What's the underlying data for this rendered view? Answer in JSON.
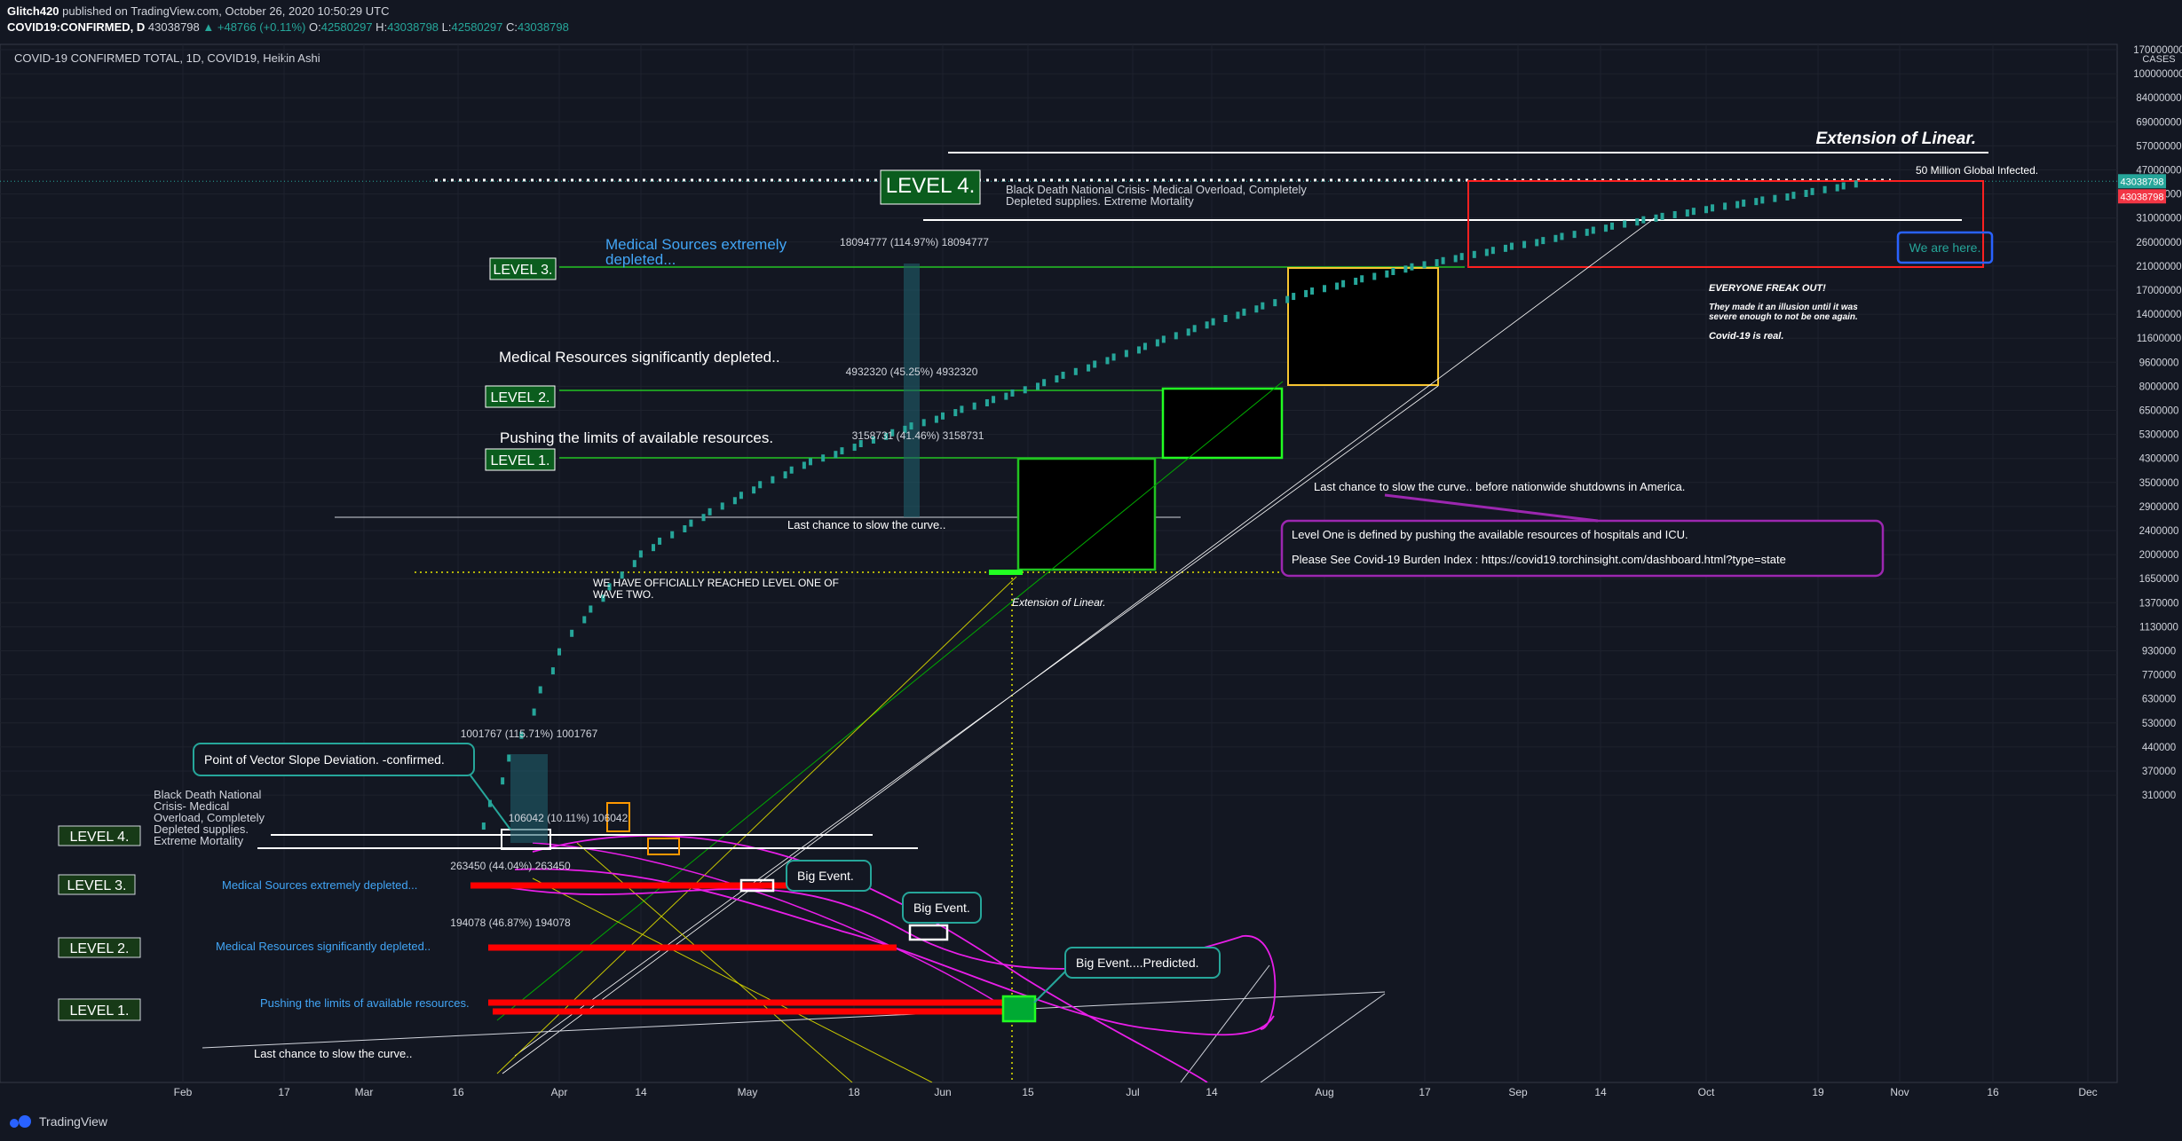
{
  "header": {
    "author": "Glitch420",
    "published": "published on TradingView.com, October 26, 2020 10:50:29 UTC",
    "symbol": "COVID19:CONFIRMED, D",
    "last": "43038798",
    "change": "+48766 (+0.11%)",
    "open": "42580297",
    "high": "43038798",
    "low": "42580297",
    "close": "43038798"
  },
  "pane_title": "COVID-19 CONFIRMED TOTAL, 1D, COVID19, Heikin Ashi",
  "footer": {
    "brand": "TradingView"
  },
  "colors": {
    "background": "#131722",
    "candle": "#26a69a",
    "level_green": "#1e7a1e",
    "marker_red": "#ff0000",
    "magenta": "#e91ee9",
    "price_tag": "#26a69a",
    "price_tag_red": "#f23645"
  },
  "chart_data": {
    "type": "candlestick",
    "scale": "log",
    "x": {
      "tick_labels": [
        "Feb",
        "17",
        "Mar",
        "16",
        "Apr",
        "14",
        "May",
        "18",
        "Jun",
        "15",
        "Jul",
        "14",
        "Aug",
        "17",
        "Sep",
        "14",
        "Oct",
        "19",
        "Nov",
        "16",
        "Dec"
      ]
    },
    "y": {
      "unit_label": "CASES",
      "tick_labels": [
        "170000000",
        "100000000",
        "84000000",
        "69000000",
        "57000000",
        "47000000",
        "39000000",
        "31000000",
        "26000000",
        "21000000",
        "17000000",
        "14000000",
        "11600000",
        "9600000",
        "8000000",
        "6500000",
        "5300000",
        "4300000",
        "3500000",
        "2900000",
        "2400000",
        "2000000",
        "1650000",
        "1370000",
        "1130000",
        "930000",
        "770000",
        "630000",
        "530000",
        "440000",
        "370000",
        "310000"
      ],
      "last_price_label": "43038798",
      "last_price_label_red": "43038798"
    },
    "series": [
      {
        "name": "COVID19:CONFIRMED",
        "dates": [
          "2020-03-20",
          "2020-03-25",
          "2020-03-30",
          "2020-04-04",
          "2020-04-09",
          "2020-04-14",
          "2020-04-20",
          "2020-04-28",
          "2020-05-10",
          "2020-05-25",
          "2020-06-10",
          "2020-06-28",
          "2020-07-13",
          "2020-07-28",
          "2020-08-15",
          "2020-09-01",
          "2020-09-20",
          "2020-10-05",
          "2020-10-26"
        ],
        "values": [
          250000,
          420000,
          720000,
          1150000,
          1500000,
          2000000,
          2400000,
          3000000,
          4100000,
          5500000,
          7300000,
          10000000,
          13000000,
          16500000,
          21000000,
          25500000,
          30500000,
          35500000,
          43038798
        ]
      }
    ],
    "annotations": {
      "upper_levels": [
        {
          "label": "LEVEL 4.",
          "text": "Black Death National Crisis- Medical Overload, Completely Depleted supplies. Extreme Mortality"
        },
        {
          "label": "LEVEL 3.",
          "text": "Medical Sources extremely depleted..."
        },
        {
          "label": "LEVEL 2.",
          "text": "Medical Resources significantly depleted.."
        },
        {
          "label": "LEVEL 1.",
          "text": "Pushing the limits of available resources."
        }
      ],
      "lower_levels": [
        {
          "label": "LEVEL 4.",
          "text": "Black Death National Crisis- Medical Overload, Completely Depleted supplies. Extreme Mortality"
        },
        {
          "label": "LEVEL 3.",
          "text": "Medical Sources extremely depleted..."
        },
        {
          "label": "LEVEL 2.",
          "text": "Medical Resources significantly depleted.."
        },
        {
          "label": "LEVEL 1.",
          "text": "Pushing the limits of available resources."
        }
      ],
      "measures": {
        "m1": "18094777 (114.97%) 18094777",
        "m2": "4932320 (45.25%) 4932320",
        "m3": "3158731 (41.46%) 3158731",
        "m4": "1001767 (115.71%) 1001767",
        "m5": "106042 (10.11%) 106042",
        "m6": "263450 (44.04%) 263450",
        "m7": "194078 (46.87%) 194078"
      },
      "extension_top": "Extension of Linear.",
      "extension_mid": "Extension of Linear.",
      "fifty_million": "50 Million Global Infected.",
      "we_are_here": "We are here.",
      "freak_out": "EVERYONE FREAK OUT!",
      "illusion": "They made it an illusion until it was severe enough to not be one again.",
      "real": "Covid-19 is real.",
      "last_chance_top": "Last chance to slow the curve.. before nationwide shutdowns in America.",
      "last_chance_mid": "Last chance to slow the curve..",
      "last_chance_low": "Last chance to slow the curve..",
      "wave_two": "WE HAVE OFFICIALLY REACHED LEVEL ONE OF WAVE TWO.",
      "info_line1": "Level One is defined by pushing the available resources of hospitals and ICU.",
      "info_line2": "Please See Covid-19 Burden Index : https://covid19.torchinsight.com/dashboard.html?type=state",
      "vector": "Point of Vector Slope Deviation. -confirmed.",
      "big_event1": "Big Event.",
      "big_event2": "Big Event.",
      "big_event3": "Big Event....Predicted."
    }
  }
}
